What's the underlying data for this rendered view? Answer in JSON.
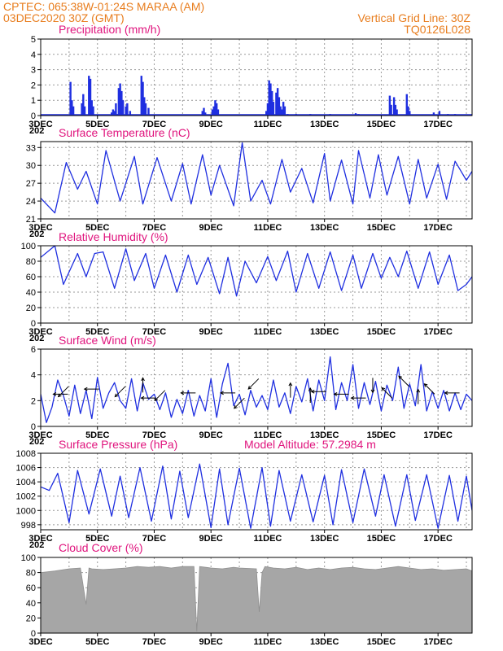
{
  "header": {
    "line1_left": "CPTEC:   065:38W-01:24S   MARAA (AM)",
    "line2_left": "03DEC2020 30Z (GMT)",
    "line1_right": "Vertical Grid Line: 30Z",
    "line2_right": "TQ0126L028"
  },
  "x_axis": {
    "tick_labels": [
      "3DEC",
      "5DEC",
      "7DEC",
      "9DEC",
      "11DEC",
      "13DEC",
      "15DEC",
      "17DEC"
    ],
    "tick_days": [
      0,
      2,
      4,
      6,
      8,
      10,
      12,
      14
    ],
    "grid_days": [
      0,
      1,
      2,
      3,
      4,
      5,
      6,
      7,
      8,
      9,
      10,
      11,
      12,
      13,
      14,
      15
    ],
    "day_range": [
      0,
      15.2
    ],
    "year_stub": "202"
  },
  "model_altitude_label": "Model Altitude: 57.2984 m",
  "chart_data": [
    {
      "type": "bar",
      "title": "Precipitation (mm/h)",
      "ylim": [
        0,
        5
      ],
      "yticks": [
        0,
        1,
        2,
        3,
        4,
        5
      ],
      "color": "#1f2fe0",
      "bars": [
        [
          1.05,
          2.2
        ],
        [
          1.1,
          1.0
        ],
        [
          1.15,
          0.6
        ],
        [
          1.45,
          0.8
        ],
        [
          1.5,
          1.4
        ],
        [
          1.55,
          0.6
        ],
        [
          1.7,
          2.6
        ],
        [
          1.75,
          2.4
        ],
        [
          1.8,
          1.0
        ],
        [
          1.85,
          0.6
        ],
        [
          2.5,
          0.2
        ],
        [
          2.55,
          0.4
        ],
        [
          2.6,
          0.3
        ],
        [
          2.7,
          0.1
        ],
        [
          2.65,
          0.8
        ],
        [
          2.75,
          1.8
        ],
        [
          2.8,
          2.1
        ],
        [
          2.85,
          1.6
        ],
        [
          2.9,
          1.0
        ],
        [
          3.0,
          0.6
        ],
        [
          3.05,
          0.8
        ],
        [
          3.15,
          0.3
        ],
        [
          3.55,
          2.6
        ],
        [
          3.6,
          2.2
        ],
        [
          3.65,
          1.2
        ],
        [
          3.7,
          0.8
        ],
        [
          3.8,
          0.5
        ],
        [
          5.7,
          0.3
        ],
        [
          5.75,
          0.5
        ],
        [
          5.8,
          0.2
        ],
        [
          6.05,
          0.4
        ],
        [
          6.1,
          0.6
        ],
        [
          6.15,
          1.0
        ],
        [
          6.2,
          0.8
        ],
        [
          6.25,
          0.4
        ],
        [
          7.95,
          0.3
        ],
        [
          8.0,
          0.8
        ],
        [
          8.05,
          2.3
        ],
        [
          8.1,
          2.1
        ],
        [
          8.15,
          1.6
        ],
        [
          8.2,
          0.9
        ],
        [
          8.3,
          1.5
        ],
        [
          8.35,
          1.8
        ],
        [
          8.4,
          1.2
        ],
        [
          8.45,
          0.6
        ],
        [
          8.5,
          0.4
        ],
        [
          8.55,
          0.9
        ],
        [
          8.6,
          0.6
        ],
        [
          8.7,
          0.1
        ],
        [
          9.0,
          0.1
        ],
        [
          9.5,
          0.1
        ],
        [
          10.2,
          0.1
        ],
        [
          11.1,
          0.15
        ],
        [
          11.2,
          0.1
        ],
        [
          12.3,
          1.3
        ],
        [
          12.35,
          0.7
        ],
        [
          12.45,
          1.2
        ],
        [
          12.5,
          0.7
        ],
        [
          12.55,
          0.4
        ],
        [
          12.9,
          1.4
        ],
        [
          12.95,
          0.6
        ],
        [
          13.0,
          0.3
        ],
        [
          13.85,
          0.2
        ],
        [
          14.05,
          0.3
        ],
        [
          14.35,
          0.1
        ],
        [
          14.6,
          0.1
        ]
      ]
    },
    {
      "type": "line",
      "title": "Surface Temperature (nC)",
      "ylim": [
        21,
        34
      ],
      "yticks": [
        21,
        24,
        27,
        30,
        33
      ],
      "color": "#1f2fe0",
      "x": [
        0,
        0.5,
        0.9,
        1.3,
        1.6,
        2.0,
        2.3,
        2.8,
        3.3,
        3.6,
        4.1,
        4.6,
        5.0,
        5.3,
        5.7,
        6.0,
        6.3,
        6.8,
        7.1,
        7.4,
        7.8,
        8.1,
        8.5,
        8.8,
        9.2,
        9.6,
        10.0,
        10.2,
        10.6,
        11.0,
        11.2,
        11.6,
        11.9,
        12.2,
        12.6,
        13.0,
        13.3,
        13.6,
        14.0,
        14.3,
        14.6,
        15.0,
        15.2
      ],
      "y": [
        24.5,
        22,
        30.5,
        26,
        29,
        23.5,
        32.5,
        24,
        31.5,
        23.5,
        31.3,
        24,
        30.3,
        23.5,
        31.8,
        25,
        30,
        23.2,
        33.8,
        24,
        27.5,
        23.5,
        31,
        25.5,
        29.5,
        23.7,
        32,
        24,
        30.9,
        23.5,
        32.5,
        24.5,
        31.8,
        25,
        31.5,
        23.5,
        31,
        24.5,
        30.2,
        24.3,
        30.7,
        27.5,
        29
      ]
    },
    {
      "type": "line",
      "title": "Relative Humidity (%)",
      "ylim": [
        0,
        100
      ],
      "yticks": [
        0,
        20,
        40,
        60,
        80,
        100
      ],
      "color": "#1f2fe0",
      "x": [
        0,
        0.5,
        0.8,
        1.3,
        1.6,
        1.9,
        2.2,
        2.6,
        3.0,
        3.3,
        3.7,
        4.0,
        4.4,
        4.8,
        5.2,
        5.5,
        5.9,
        6.3,
        6.6,
        6.9,
        7.2,
        7.6,
        8.0,
        8.3,
        8.7,
        9.0,
        9.4,
        9.8,
        10.2,
        10.6,
        11.0,
        11.3,
        11.7,
        12.0,
        12.3,
        12.6,
        12.9,
        13.3,
        13.7,
        14.0,
        14.4,
        14.7,
        15.0,
        15.2
      ],
      "y": [
        85,
        100,
        50,
        90,
        60,
        90,
        92,
        45,
        96,
        55,
        90,
        45,
        88,
        40,
        88,
        50,
        85,
        38,
        85,
        35,
        80,
        52,
        86,
        55,
        93,
        40,
        90,
        45,
        92,
        42,
        88,
        45,
        90,
        58,
        85,
        60,
        93,
        45,
        92,
        50,
        88,
        42,
        50,
        60
      ]
    },
    {
      "type": "line",
      "title": "Surface Wind (m/s)",
      "ylim": [
        0,
        6
      ],
      "yticks": [
        0,
        2,
        4,
        6
      ],
      "color": "#1f2fe0",
      "x": [
        0,
        0.2,
        0.4,
        0.6,
        0.8,
        1.0,
        1.2,
        1.4,
        1.6,
        1.8,
        2.0,
        2.2,
        2.4,
        2.6,
        2.8,
        3.0,
        3.2,
        3.4,
        3.6,
        3.8,
        4.0,
        4.2,
        4.4,
        4.6,
        4.8,
        5.0,
        5.2,
        5.4,
        5.6,
        5.8,
        6.0,
        6.2,
        6.4,
        6.6,
        6.8,
        7.0,
        7.2,
        7.4,
        7.6,
        7.8,
        8.0,
        8.2,
        8.4,
        8.6,
        8.8,
        9.0,
        9.2,
        9.4,
        9.6,
        9.8,
        10.0,
        10.2,
        10.4,
        10.6,
        10.8,
        11.0,
        11.2,
        11.4,
        11.6,
        11.8,
        12.0,
        12.2,
        12.4,
        12.6,
        12.8,
        13.0,
        13.2,
        13.4,
        13.6,
        13.8,
        14.0,
        14.2,
        14.4,
        14.6,
        14.8,
        15.0,
        15.2
      ],
      "y": [
        2.5,
        0.3,
        1.5,
        3.6,
        2.4,
        0.8,
        3.2,
        1.0,
        2.8,
        0.6,
        3.8,
        1.4,
        2.6,
        3.4,
        2.0,
        1.4,
        3.7,
        1.2,
        3.4,
        2.1,
        2.5,
        1.3,
        2.6,
        0.7,
        2.1,
        1.0,
        2.8,
        0.8,
        2.4,
        1.2,
        3.7,
        0.7,
        3.3,
        4.9,
        1.6,
        2.5,
        0.9,
        2.8,
        1.5,
        2.4,
        1.3,
        3.6,
        1.5,
        2.6,
        1.0,
        3.1,
        1.9,
        3.7,
        1.2,
        3.6,
        2.0,
        5.4,
        1.3,
        3.4,
        2.0,
        4.8,
        1.4,
        3.4,
        1.7,
        3.5,
        1.2,
        3.2,
        2.0,
        4.6,
        1.4,
        3.3,
        1.6,
        4.8,
        1.2,
        2.7,
        1.4,
        2.8,
        1.2,
        2.6,
        1.3,
        2.5,
        2.0
      ],
      "vectors": [
        [
          0.7,
          2.5,
          "W"
        ],
        [
          0.8,
          2.7,
          "SW"
        ],
        [
          1.8,
          2.9,
          "W"
        ],
        [
          2.8,
          2.7,
          "SW"
        ],
        [
          3.6,
          3.2,
          "N"
        ],
        [
          3.8,
          2.2,
          "W"
        ],
        [
          4.2,
          2.4,
          "SW"
        ],
        [
          5.2,
          2.6,
          "W"
        ],
        [
          6.6,
          2.6,
          "W"
        ],
        [
          7.0,
          1.8,
          "SW"
        ],
        [
          7.5,
          3.3,
          "SW"
        ],
        [
          8.8,
          2.8,
          "N"
        ],
        [
          9.5,
          2.4,
          "N"
        ],
        [
          9.8,
          2.7,
          "W"
        ],
        [
          10.6,
          2.5,
          "W"
        ],
        [
          11.2,
          2.2,
          "W"
        ],
        [
          11.7,
          3.2,
          "S"
        ],
        [
          12.2,
          2.6,
          "NW"
        ],
        [
          12.8,
          3.5,
          "NW"
        ],
        [
          13.3,
          2.3,
          "N"
        ],
        [
          13.7,
          2.9,
          "NW"
        ],
        [
          14.5,
          2.6,
          "W"
        ]
      ]
    },
    {
      "type": "line",
      "title": "Surface Pressure (hPa)",
      "ylim": [
        997.3,
        1008
      ],
      "yticks": [
        998,
        1000,
        1002,
        1004,
        1006,
        1008
      ],
      "color": "#1f2fe0",
      "x": [
        0,
        0.3,
        0.6,
        1.0,
        1.3,
        1.7,
        2.1,
        2.5,
        2.8,
        3.1,
        3.5,
        3.9,
        4.3,
        4.6,
        4.9,
        5.2,
        5.6,
        6.0,
        6.3,
        6.6,
        7.0,
        7.4,
        7.8,
        8.1,
        8.4,
        8.8,
        9.2,
        9.6,
        10.0,
        10.3,
        10.6,
        11.0,
        11.4,
        11.8,
        12.1,
        12.5,
        12.9,
        13.2,
        13.6,
        14.0,
        14.4,
        14.7,
        15.0,
        15.2
      ],
      "y": [
        1003.3,
        1002.8,
        1005.2,
        998.3,
        1005.6,
        999.5,
        1005.8,
        999.2,
        1004.8,
        999.0,
        1006.0,
        998.5,
        1006.2,
        998.8,
        1005.5,
        999.0,
        1006.5,
        997.6,
        1005.8,
        998.0,
        1005.9,
        997.5,
        1006.0,
        997.8,
        1005.6,
        998.5,
        1005.0,
        998.4,
        1004.9,
        998.0,
        1005.7,
        998.3,
        1005.8,
        999.2,
        1005.0,
        997.8,
        1005.0,
        998.6,
        1005.0,
        997.5,
        1004.9,
        998.5,
        1004.8,
        1000.0
      ]
    },
    {
      "type": "area",
      "title": "Cloud Cover (%)",
      "ylim": [
        0,
        100
      ],
      "yticks": [
        0,
        20,
        40,
        60,
        80,
        100
      ],
      "color": "#a6a6a6",
      "x": [
        0,
        0.5,
        1.0,
        1.4,
        1.6,
        1.7,
        1.8,
        2.2,
        2.6,
        3.0,
        3.4,
        3.8,
        4.2,
        4.6,
        5.0,
        5.4,
        5.5,
        5.6,
        6.0,
        6.4,
        6.8,
        7.0,
        7.6,
        7.7,
        7.8,
        7.9,
        8.2,
        8.6,
        9.0,
        9.4,
        9.8,
        10.2,
        10.6,
        11.0,
        11.4,
        11.8,
        12.2,
        12.6,
        13.0,
        13.4,
        13.8,
        14.2,
        14.6,
        15.0,
        15.2
      ],
      "y": [
        80,
        82,
        85,
        86,
        38,
        86,
        85,
        84,
        85,
        86,
        88,
        87,
        88,
        86,
        88,
        88,
        2,
        88,
        86,
        85,
        87,
        86,
        85,
        28,
        80,
        88,
        86,
        85,
        87,
        84,
        86,
        84,
        86,
        87,
        85,
        84,
        86,
        88,
        86,
        84,
        85,
        83,
        84,
        85,
        82
      ]
    }
  ]
}
